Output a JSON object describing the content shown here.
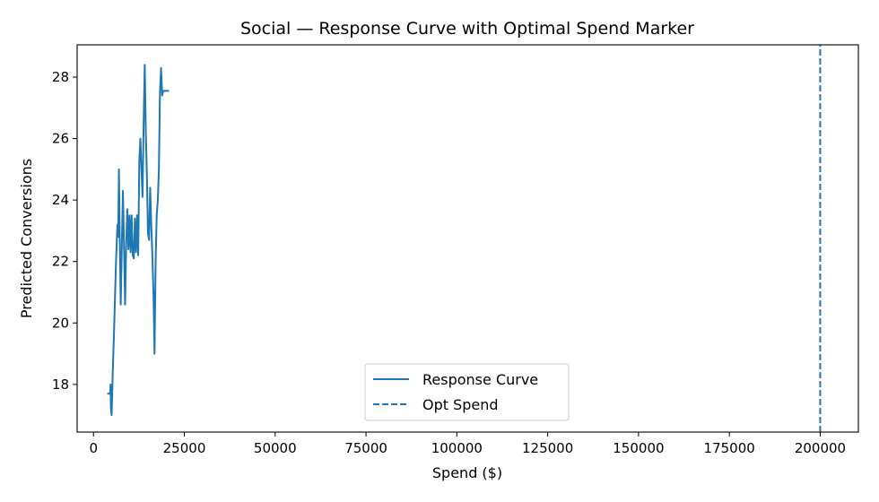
{
  "chart_data": {
    "type": "line",
    "title": "Social — Response Curve with Optimal Spend Marker",
    "xlabel": "Spend ($)",
    "ylabel": "Predicted Conversions",
    "xlim": [
      -4500,
      210500
    ],
    "ylim": [
      16.45,
      29.05
    ],
    "xticks": [
      0,
      25000,
      50000,
      75000,
      100000,
      125000,
      150000,
      175000,
      200000
    ],
    "yticks": [
      18,
      20,
      22,
      24,
      26,
      28
    ],
    "grid": false,
    "legend_position": "lower-center",
    "colors": {
      "series": "#1f77b4",
      "axes": "#000000"
    },
    "series": [
      {
        "name": "Response Curve",
        "style": "solid",
        "x": [
          3800,
          4600,
          4700,
          4800,
          5000,
          5300,
          5600,
          6200,
          6600,
          6800,
          7000,
          7200,
          7500,
          7800,
          8100,
          8400,
          8700,
          9000,
          9300,
          9600,
          9900,
          10200,
          10500,
          10800,
          11100,
          11400,
          11700,
          12000,
          12300,
          12600,
          12900,
          13200,
          13500,
          13800,
          14100,
          14400,
          14700,
          15000,
          15300,
          15600,
          15900,
          16200,
          16500,
          16800,
          17100,
          17400,
          17700,
          18000,
          18300,
          18600,
          18900,
          19200,
          19500,
          19800,
          20100,
          20400,
          20800
        ],
        "y": [
          17.7,
          17.7,
          18.0,
          17.2,
          17.0,
          18.4,
          19.5,
          22.0,
          23.2,
          22.8,
          25.0,
          23.0,
          20.6,
          22.5,
          24.3,
          22.5,
          20.6,
          22.6,
          23.7,
          22.4,
          23.5,
          22.3,
          23.5,
          22.2,
          22.1,
          23.4,
          22.3,
          23.5,
          22.2,
          25.2,
          26.0,
          25.0,
          24.1,
          26.5,
          28.4,
          26.2,
          24.8,
          22.9,
          22.7,
          24.4,
          23.2,
          22.2,
          21.0,
          19.0,
          22.0,
          23.5,
          24.0,
          25.0,
          27.5,
          28.3,
          27.4,
          27.55,
          27.55,
          27.55,
          27.55,
          27.55,
          27.55
        ]
      },
      {
        "name": "Opt Spend",
        "style": "dashed",
        "x": [
          200000,
          200000
        ],
        "y": [
          16.45,
          29.05
        ]
      }
    ]
  }
}
